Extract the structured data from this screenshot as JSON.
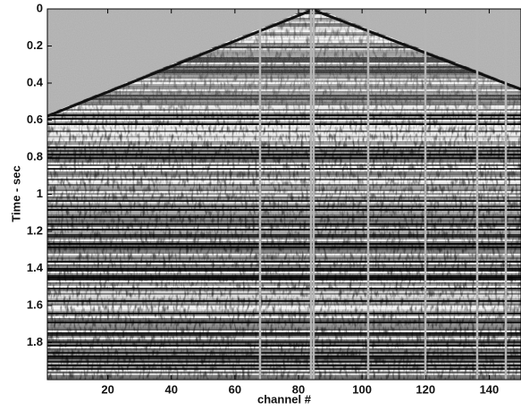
{
  "chart_data": {
    "type": "seismic",
    "xlabel": "channel #",
    "ylabel": "Time - sec",
    "xlim": [
      1,
      150
    ],
    "xticks": [
      20,
      40,
      60,
      80,
      100,
      120,
      140
    ],
    "ylim": [
      0,
      2
    ],
    "yticks": [
      0,
      0.2,
      0.4,
      0.6,
      0.8,
      1,
      1.2,
      1.4,
      1.6,
      1.8
    ],
    "y_inverted": true,
    "colormap": "gray"
  }
}
